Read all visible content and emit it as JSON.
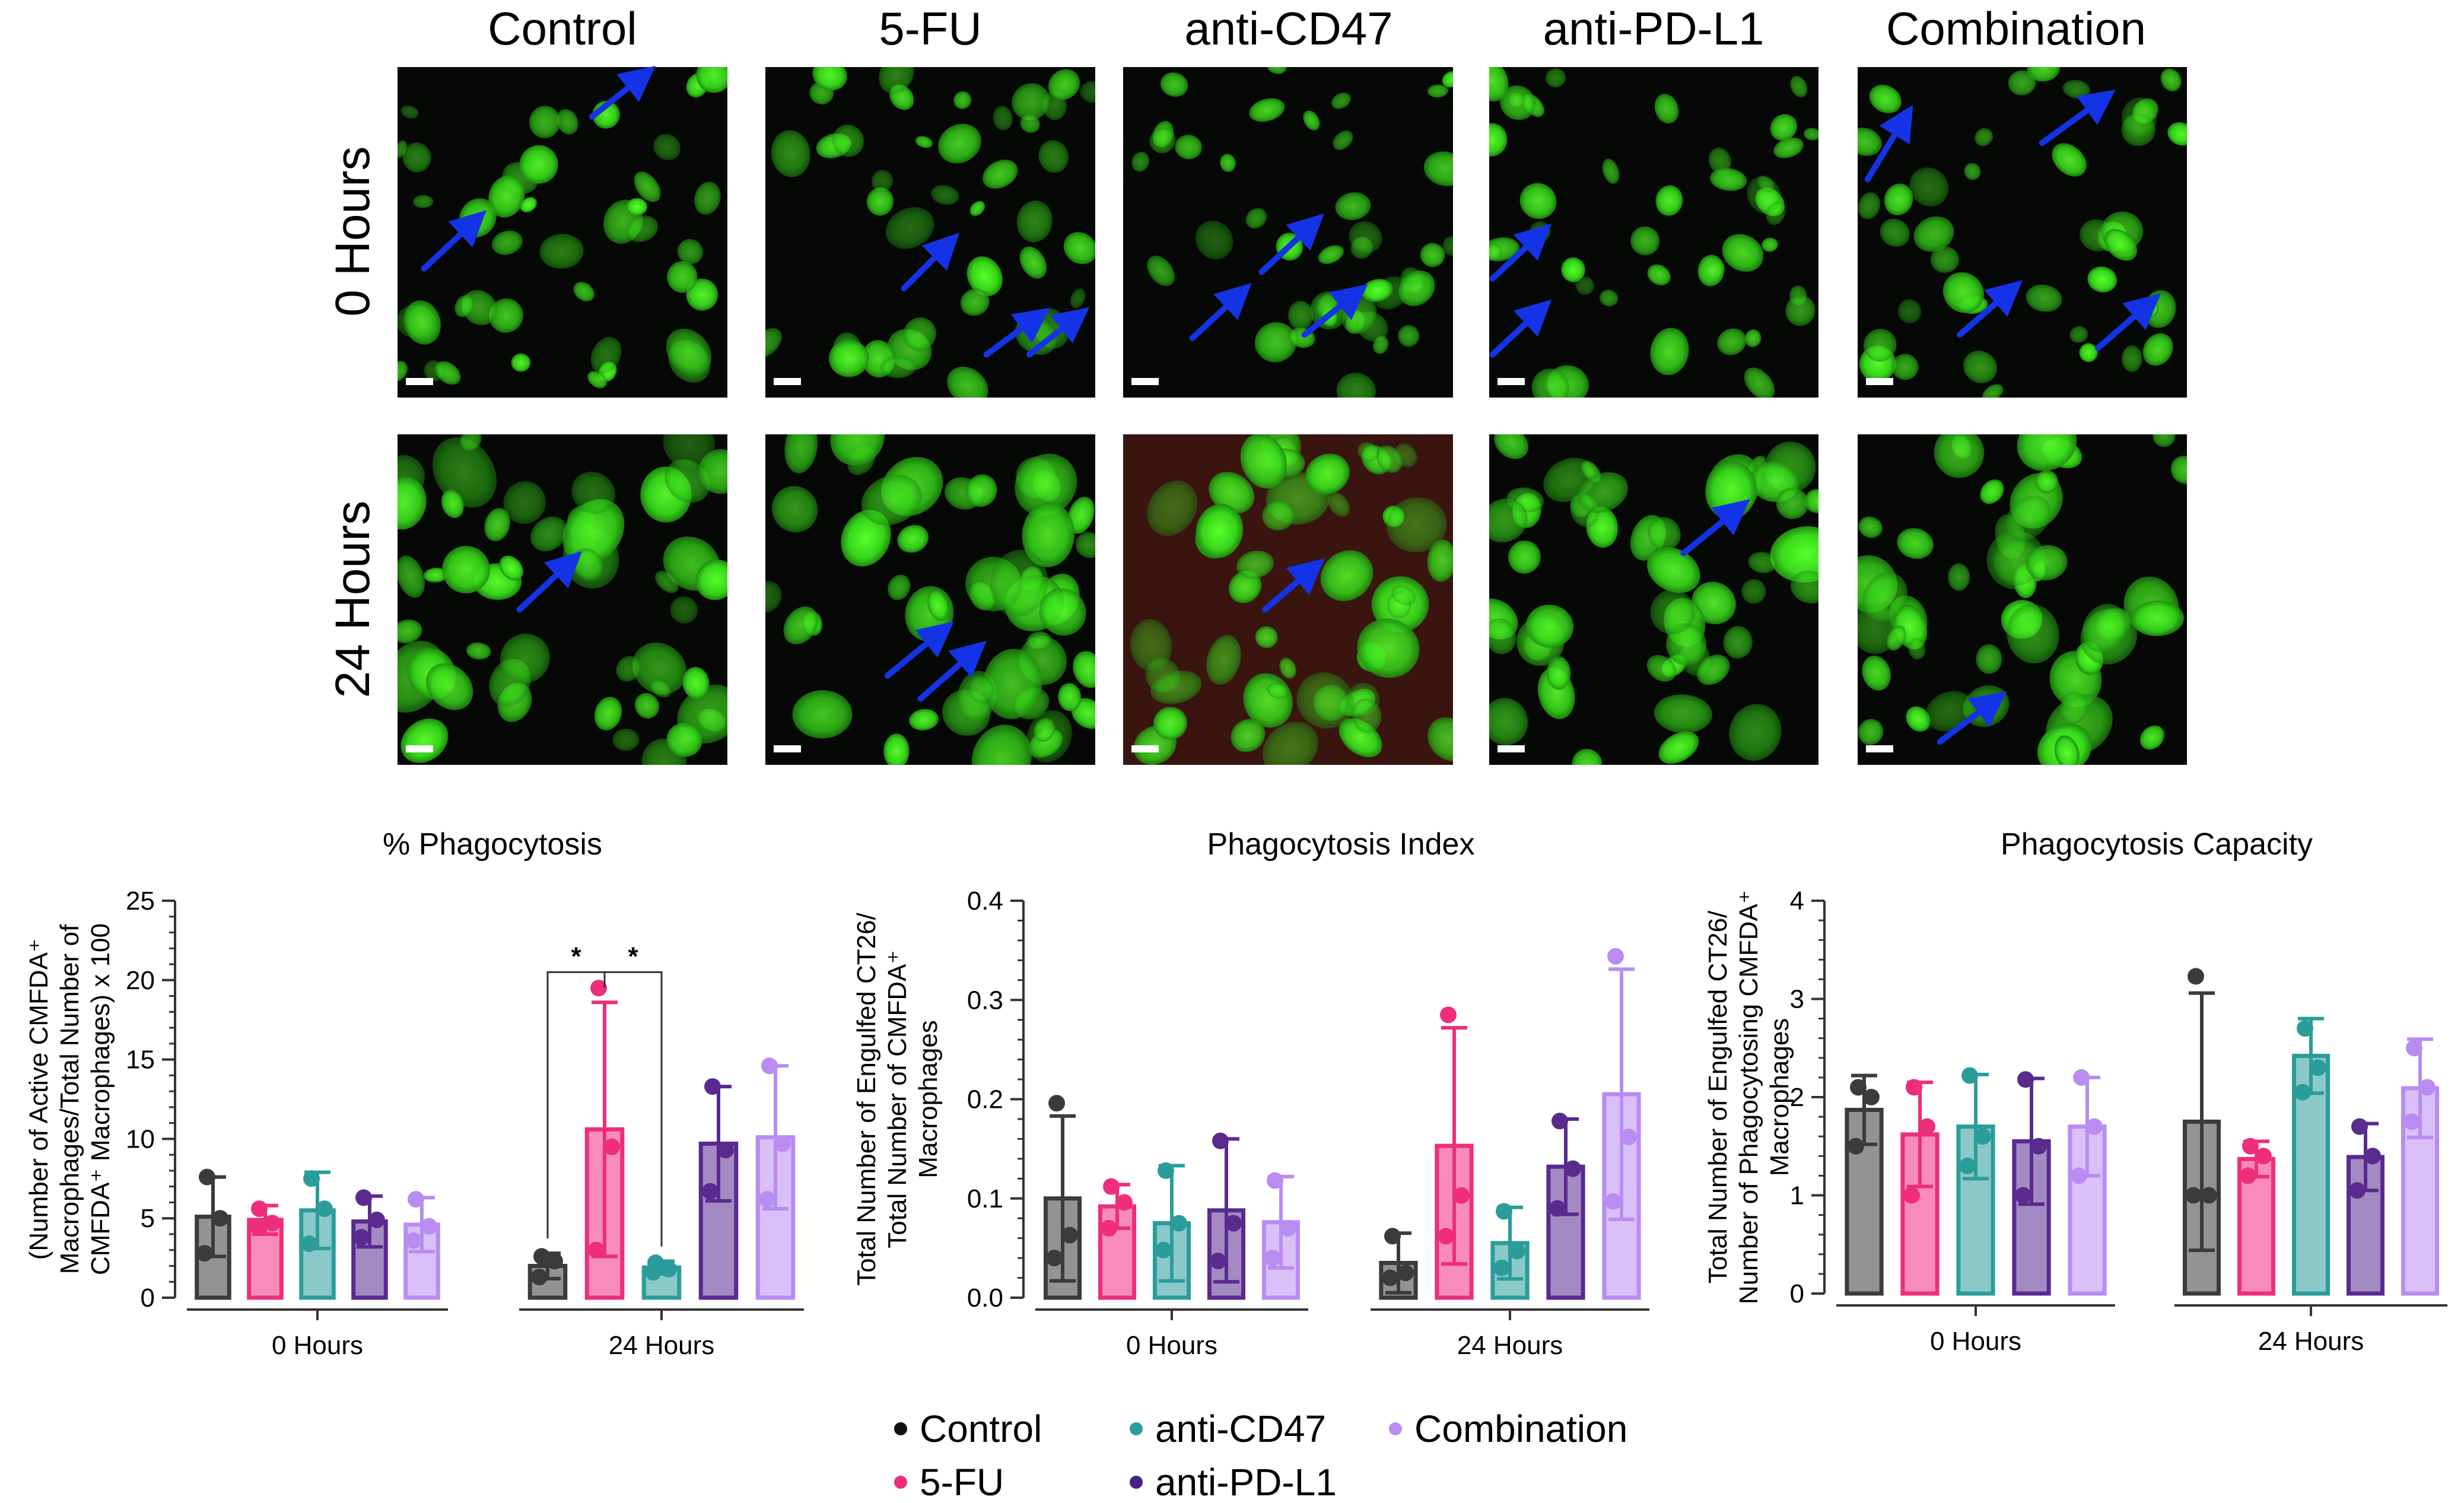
{
  "figure": {
    "column_titles": [
      "Control",
      "5-FU",
      "anti-CD47",
      "anti-PD-L1",
      "Combination"
    ],
    "row_titles": [
      "0 Hours",
      "24 Hours"
    ],
    "micrograph_colors": {
      "background": "#050805",
      "cell": "#39e61c",
      "cell_dim": "#1f8a10",
      "arrow": "#1533e6",
      "overlay_red": "#3a1510",
      "scale_bar": "#ffffff"
    },
    "series_colors": {
      "Control": "#3b3b3b",
      "5-FU": "#ee2e7b",
      "anti-CD47": "#2a9d9a",
      "anti-PD-L1": "#5a2a8f",
      "Combination": "#b98cf2"
    },
    "legend": {
      "items": [
        {
          "label": "Control",
          "color": "#111111"
        },
        {
          "label": "5-FU",
          "color": "#ee2e7b"
        },
        {
          "label": "anti-CD47",
          "color": "#2a9d9a"
        },
        {
          "label": "anti-PD-L1",
          "color": "#4a2180"
        },
        {
          "label": "Combination",
          "color": "#b98cf2"
        }
      ]
    }
  },
  "chart_data": [
    {
      "type": "bar",
      "title": "% Phagocytosis",
      "ylabel_lines": [
        "(Number of Active CMFDA⁺",
        "Macrophages/Total Number of",
        "CMFDA⁺ Macrophages) x 100"
      ],
      "xlabel": "",
      "categories": [
        "0 Hours",
        "24 Hours"
      ],
      "ylim": [
        0,
        25
      ],
      "yticks": [
        0,
        5,
        10,
        15,
        20,
        25
      ],
      "minor_step": 1,
      "series": [
        {
          "name": "Control",
          "values": [
            5.1,
            2.0
          ],
          "err": [
            2.5,
            0.8
          ],
          "points": [
            [
              7.6,
              5.0,
              2.8
            ],
            [
              2.6,
              2.3,
              1.3
            ]
          ]
        },
        {
          "name": "5-FU",
          "values": [
            4.9,
            10.6
          ],
          "err": [
            0.9,
            8.0
          ],
          "points": [
            [
              5.6,
              4.7,
              4.5
            ],
            [
              19.5,
              9.5,
              3.0
            ]
          ]
        },
        {
          "name": "anti-CD47",
          "values": [
            5.5,
            1.9
          ],
          "err": [
            2.4,
            0.4
          ],
          "points": [
            [
              7.5,
              5.6,
              3.4
            ],
            [
              2.2,
              1.8,
              1.6
            ]
          ]
        },
        {
          "name": "anti-PD-L1",
          "values": [
            4.8,
            9.7
          ],
          "err": [
            1.6,
            3.6
          ],
          "points": [
            [
              6.3,
              4.9,
              3.8
            ],
            [
              13.3,
              9.3,
              6.7
            ]
          ]
        },
        {
          "name": "Combination",
          "values": [
            4.6,
            10.1
          ],
          "err": [
            1.7,
            4.5
          ],
          "points": [
            [
              6.2,
              4.5,
              3.6
            ],
            [
              14.6,
              9.7,
              6.2
            ]
          ]
        }
      ],
      "significance": {
        "label": "*",
        "comparisons": [
          [
            "Control",
            "5-FU"
          ],
          [
            "5-FU",
            "anti-CD47"
          ]
        ],
        "group": "24 Hours",
        "y": 20.5
      }
    },
    {
      "type": "bar",
      "title": "Phagocytosis Index",
      "ylabel_lines": [
        "Total Number of Engulfed CT26/",
        "Total Number of CMFDA⁺",
        "Macrophages"
      ],
      "xlabel": "",
      "categories": [
        "0 Hours",
        "24 Hours"
      ],
      "ylim": [
        0,
        0.4
      ],
      "yticks": [
        0.0,
        0.1,
        0.2,
        0.3,
        0.4
      ],
      "tick_labels": [
        "0.0",
        "0.1",
        "0.2",
        "0.3",
        "0.4"
      ],
      "minor_step": 0.02,
      "series": [
        {
          "name": "Control",
          "values": [
            0.1,
            0.035
          ],
          "err": [
            0.083,
            0.03
          ],
          "points": [
            [
              0.196,
              0.063,
              0.04
            ],
            [
              0.062,
              0.025,
              0.02
            ]
          ]
        },
        {
          "name": "5-FU",
          "values": [
            0.092,
            0.153
          ],
          "err": [
            0.022,
            0.119
          ],
          "points": [
            [
              0.112,
              0.096,
              0.07
            ],
            [
              0.285,
              0.103,
              0.062
            ]
          ]
        },
        {
          "name": "anti-CD47",
          "values": [
            0.075,
            0.055
          ],
          "err": [
            0.058,
            0.036
          ],
          "points": [
            [
              0.128,
              0.075,
              0.048
            ],
            [
              0.087,
              0.047,
              0.03
            ]
          ]
        },
        {
          "name": "anti-PD-L1",
          "values": [
            0.088,
            0.132
          ],
          "err": [
            0.072,
            0.048
          ],
          "points": [
            [
              0.158,
              0.075,
              0.037
            ],
            [
              0.178,
              0.13,
              0.09
            ]
          ]
        },
        {
          "name": "Combination",
          "values": [
            0.076,
            0.205
          ],
          "err": [
            0.046,
            0.126
          ],
          "points": [
            [
              0.118,
              0.07,
              0.04
            ],
            [
              0.344,
              0.162,
              0.097
            ]
          ]
        }
      ]
    },
    {
      "type": "bar",
      "title": "Phagocytosis Capacity",
      "ylabel_lines": [
        "Total Number of Engulfed CT26/",
        "Number of Phagocytosing CMFDA⁺",
        "Macrophages"
      ],
      "xlabel": "",
      "categories": [
        "0 Hours",
        "24 Hours"
      ],
      "ylim": [
        0,
        4
      ],
      "yticks": [
        0,
        1,
        2,
        3,
        4
      ],
      "minor_step": 0.2,
      "series": [
        {
          "name": "Control",
          "values": [
            1.87,
            1.75
          ],
          "err": [
            0.35,
            1.31
          ],
          "points": [
            [
              2.1,
              2.0,
              1.5
            ],
            [
              3.23,
              1.0,
              1.0
            ]
          ]
        },
        {
          "name": "5-FU",
          "values": [
            1.62,
            1.37
          ],
          "err": [
            0.53,
            0.18
          ],
          "points": [
            [
              2.1,
              1.7,
              1.0
            ],
            [
              1.5,
              1.4,
              1.2
            ]
          ]
        },
        {
          "name": "anti-CD47",
          "values": [
            1.7,
            2.42
          ],
          "err": [
            0.53,
            0.38
          ],
          "points": [
            [
              2.22,
              1.6,
              1.3
            ],
            [
              2.7,
              2.3,
              2.05
            ]
          ]
        },
        {
          "name": "anti-PD-L1",
          "values": [
            1.55,
            1.39
          ],
          "err": [
            0.64,
            0.34
          ],
          "points": [
            [
              2.18,
              1.5,
              1.0
            ],
            [
              1.7,
              1.4,
              1.05
            ]
          ]
        },
        {
          "name": "Combination",
          "values": [
            1.7,
            2.09
          ],
          "err": [
            0.5,
            0.5
          ],
          "points": [
            [
              2.2,
              1.7,
              1.2
            ],
            [
              2.5,
              2.1,
              1.75
            ]
          ]
        }
      ]
    }
  ]
}
